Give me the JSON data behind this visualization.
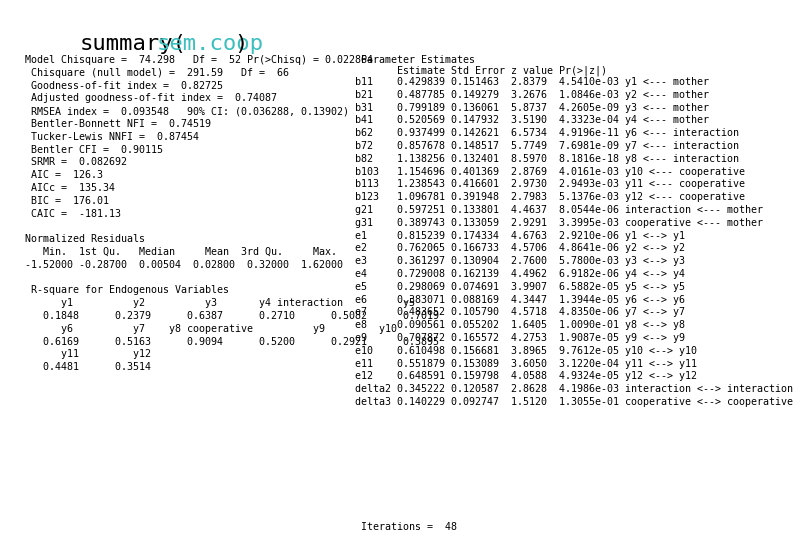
{
  "title_color": "#3BBFBF",
  "bg_color": "#FFFFFF",
  "font_family": "monospace",
  "font_size": 7.2,
  "title_fontsize": 16,
  "left_text": "Model Chisquare =  74.298   Df =  52 Pr(>Chisq) = 0.022864\n Chisquare (null model) =  291.59   Df =  66\n Goodness-of-fit index =  0.82725\n Adjusted goodness-of-fit index =  0.74087\n RMSEA index =  0.093548   90% CI: (0.036288, 0.13902)\n Bentler-Bonnett NFI =  0.74519\n Tucker-Lewis NNFI =  0.87454\n Bentler CFI =  0.90115\n SRMR =  0.082692\n AIC =  126.3\n AICc =  135.34\n BIC =  176.01\n CAIC =  -181.13\n\nNormalized Residuals\n   Min.  1st Qu.   Median     Mean  3rd Qu.     Max.\n-1.52000 -0.28700  0.00504  0.02800  0.32000  1.62000\n\n R-square for Endogenous Variables\n      y1          y2          y3       y4 interaction          y5\n   0.1848      0.2379      0.6387      0.2710      0.5082      0.7019\n      y6          y7    y8 cooperative          y9         y10\n   0.6169      0.5163      0.9094      0.5200      0.2921      0.3895\n      y11         y12\n   0.4481      0.3514",
  "right_header": " Parameter Estimates",
  "right_subheader": "       Estimate Std Error z value Pr(>|z|)",
  "right_text": "b11    0.429839 0.151463  2.8379  4.5410e-03 y1 <--- mother\nb21    0.487785 0.149279  3.2676  1.0846e-03 y2 <--- mother\nb31    0.799189 0.136061  5.8737  4.2605e-09 y3 <--- mother\nb41    0.520569 0.147932  3.5190  4.3323e-04 y4 <--- mother\nb62    0.937499 0.142621  6.5734  4.9196e-11 y6 <--- interaction\nb72    0.857678 0.148517  5.7749  7.6981e-09 y7 <--- interaction\nb82    1.138256 0.132401  8.5970  8.1816e-18 y8 <--- interaction\nb103   1.154696 0.401369  2.8769  4.0161e-03 y10 <--- cooperative\nb113   1.238543 0.416601  2.9730  2.9493e-03 y11 <--- cooperative\nb123   1.096781 0.391948  2.7983  5.1376e-03 y12 <--- cooperative\ng21    0.597251 0.133801  4.4637  8.0544e-06 interaction <--- mother\ng31    0.389743 0.133059  2.9291  3.3995e-03 cooperative <--- mother\ne1     0.815239 0.174334  4.6763  2.9210e-06 y1 <--> y1\ne2     0.762065 0.166733  4.5706  4.8641e-06 y2 <--> y2\ne3     0.361297 0.130904  2.7600  5.7800e-03 y3 <--> y3\ne4     0.729008 0.162139  4.4962  6.9182e-06 y4 <--> y4\ne5     0.298069 0.074691  3.9907  6.5882e-05 y5 <--> y5\ne6     0.383071 0.088169  4.3447  1.3944e-05 y6 <--> y6\ne7     0.483652 0.105790  4.5718  4.8350e-06 y7 <--> y7\ne8     0.090561 0.055202  1.6405  1.0090e-01 y8 <--> y8\ne9     0.707872 0.165572  4.2753  1.9087e-05 y9 <--> y9\ne10    0.610498 0.156681  3.8965  9.7612e-05 y10 <--> y10\ne11    0.551879 0.153089  3.6050  3.1220e-04 y11 <--> y11\ne12    0.648591 0.159798  4.0588  4.9324e-05 y12 <--> y12\ndelta2 0.345222 0.120587  2.8628  4.1986e-03 interaction <--> interaction\ndelta3 0.140229 0.092747  1.5120  1.3055e-01 cooperative <--> cooperative",
  "iterations_text": " Iterations =  48"
}
